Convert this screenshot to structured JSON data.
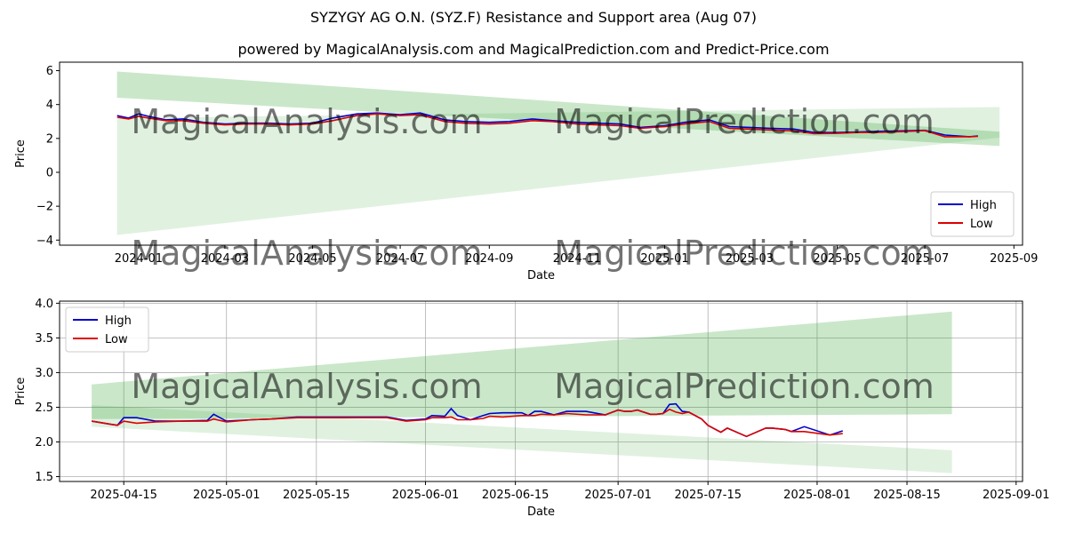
{
  "title": "SYZYGY AG O.N. (SYZ.F) Resistance and Support area (Aug 07)",
  "subtitle": "powered by MagicalAnalysis.com and MagicalPrediction.com and Predict-Price.com",
  "watermarks": [
    "MagicalAnalysis.com",
    "MagicalPrediction.com"
  ],
  "colors": {
    "high": "#0000cc",
    "low": "#dd0000",
    "band": "#2ca02c",
    "grid": "#b0b0b0"
  },
  "chart_data": [
    {
      "type": "line",
      "xlabel": "Date",
      "ylabel": "Price",
      "x_ticks": [
        "2024-01",
        "2024-03",
        "2024-05",
        "2024-07",
        "2024-09",
        "2024-11",
        "2025-01",
        "2025-03",
        "2025-05",
        "2025-07",
        "2025-09"
      ],
      "y_ticks": [
        "−4",
        "−2",
        "0",
        "2",
        "4",
        "6"
      ],
      "xlim": [
        "2023-11-07",
        "2025-09-07"
      ],
      "ylim": [
        -4.3,
        6.5
      ],
      "grid": false,
      "legend": "bottom-right",
      "bands": [
        {
          "x": [
            "2023-12-17",
            "2025-08-22"
          ],
          "upper": [
            5.95,
            2.4
          ],
          "lower": [
            4.4,
            1.55
          ]
        },
        {
          "x": [
            "2023-12-17",
            "2025-08-22"
          ],
          "upper": [
            3.2,
            3.85
          ],
          "lower": [
            -3.7,
            2.05
          ]
        }
      ],
      "series": [
        {
          "name": "High",
          "x": [
            "2023-12-17",
            "2023-12-25",
            "2024-01-01",
            "2024-01-08",
            "2024-01-20",
            "2024-02-01",
            "2024-02-15",
            "2024-03-01",
            "2024-03-15",
            "2024-04-01",
            "2024-04-15",
            "2024-05-01",
            "2024-05-15",
            "2024-06-01",
            "2024-06-15",
            "2024-07-01",
            "2024-07-15",
            "2024-08-01",
            "2024-08-15",
            "2024-09-01",
            "2024-09-15",
            "2024-10-01",
            "2024-10-15",
            "2024-11-01",
            "2024-11-15",
            "2024-12-01",
            "2024-12-15",
            "2025-01-01",
            "2025-01-15",
            "2025-02-01",
            "2025-02-15",
            "2025-03-01",
            "2025-03-15",
            "2025-04-01",
            "2025-04-15",
            "2025-05-01",
            "2025-05-15",
            "2025-06-01",
            "2025-06-15",
            "2025-07-01",
            "2025-07-15",
            "2025-08-01",
            "2025-08-07"
          ],
          "values": [
            3.35,
            3.2,
            3.45,
            3.3,
            3.1,
            3.15,
            2.95,
            2.85,
            2.9,
            2.9,
            2.85,
            2.9,
            3.2,
            3.45,
            3.5,
            3.4,
            3.5,
            3.1,
            3.0,
            2.95,
            3.0,
            3.15,
            3.05,
            2.95,
            2.9,
            2.85,
            2.65,
            2.75,
            2.95,
            3.1,
            2.7,
            2.65,
            2.6,
            2.55,
            2.35,
            2.35,
            2.38,
            2.42,
            2.45,
            2.48,
            2.2,
            2.1,
            2.15
          ]
        },
        {
          "name": "Low",
          "x": [
            "2023-12-17",
            "2023-12-25",
            "2024-01-01",
            "2024-01-08",
            "2024-01-20",
            "2024-02-01",
            "2024-02-15",
            "2024-03-01",
            "2024-03-15",
            "2024-04-01",
            "2024-04-15",
            "2024-05-01",
            "2024-05-15",
            "2024-06-01",
            "2024-06-15",
            "2024-07-01",
            "2024-07-15",
            "2024-08-01",
            "2024-08-15",
            "2024-09-01",
            "2024-09-15",
            "2024-10-01",
            "2024-10-15",
            "2024-11-01",
            "2024-11-15",
            "2024-12-01",
            "2024-12-15",
            "2025-01-01",
            "2025-01-15",
            "2025-02-01",
            "2025-02-15",
            "2025-03-01",
            "2025-03-15",
            "2025-04-01",
            "2025-04-15",
            "2025-05-01",
            "2025-05-15",
            "2025-06-01",
            "2025-06-15",
            "2025-07-01",
            "2025-07-15",
            "2025-08-01",
            "2025-08-07"
          ],
          "values": [
            3.25,
            3.15,
            3.3,
            3.2,
            3.05,
            3.05,
            2.9,
            2.8,
            2.85,
            2.85,
            2.8,
            2.85,
            3.05,
            3.35,
            3.45,
            3.35,
            3.4,
            3.0,
            2.9,
            2.85,
            2.9,
            3.05,
            3.0,
            2.85,
            2.8,
            2.75,
            2.6,
            2.7,
            2.85,
            3.0,
            2.6,
            2.55,
            2.5,
            2.45,
            2.28,
            2.3,
            2.35,
            2.36,
            2.4,
            2.46,
            2.1,
            2.1,
            2.12
          ]
        }
      ]
    },
    {
      "type": "line",
      "xlabel": "Date",
      "ylabel": "Price",
      "x_ticks": [
        "2025-04-15",
        "2025-05-01",
        "2025-05-15",
        "2025-06-01",
        "2025-06-15",
        "2025-07-01",
        "2025-07-15",
        "2025-08-01",
        "2025-08-15",
        "2025-09-01"
      ],
      "y_ticks": [
        "1.5",
        "2.0",
        "2.5",
        "3.0",
        "3.5",
        "4.0"
      ],
      "xlim": [
        "2025-04-05",
        "2025-09-02"
      ],
      "ylim": [
        1.43,
        4.03
      ],
      "grid": true,
      "legend": "top-left",
      "bands": [
        {
          "x": [
            "2025-04-10",
            "2025-08-22"
          ],
          "upper": [
            2.83,
            3.88
          ],
          "lower": [
            2.33,
            2.4
          ]
        },
        {
          "x": [
            "2025-04-10",
            "2025-08-22"
          ],
          "upper": [
            2.53,
            1.88
          ],
          "lower": [
            2.22,
            1.55
          ]
        }
      ],
      "series": [
        {
          "name": "High",
          "x": [
            "2025-04-10",
            "2025-04-12",
            "2025-04-14",
            "2025-04-15",
            "2025-04-17",
            "2025-04-20",
            "2025-04-24",
            "2025-04-28",
            "2025-04-29",
            "2025-05-01",
            "2025-05-05",
            "2025-05-08",
            "2025-05-12",
            "2025-05-26",
            "2025-05-29",
            "2025-06-01",
            "2025-06-02",
            "2025-06-04",
            "2025-06-05",
            "2025-06-06",
            "2025-06-08",
            "2025-06-10",
            "2025-06-11",
            "2025-06-13",
            "2025-06-16",
            "2025-06-17",
            "2025-06-18",
            "2025-06-19",
            "2025-06-21",
            "2025-06-23",
            "2025-06-26",
            "2025-06-29",
            "2025-07-01",
            "2025-07-02",
            "2025-07-03",
            "2025-07-04",
            "2025-07-06",
            "2025-07-07",
            "2025-07-08",
            "2025-07-09",
            "2025-07-10",
            "2025-07-11",
            "2025-07-12",
            "2025-07-14",
            "2025-07-15",
            "2025-07-17",
            "2025-07-18",
            "2025-07-21",
            "2025-07-24",
            "2025-07-25",
            "2025-07-27",
            "2025-07-28",
            "2025-07-30",
            "2025-08-03",
            "2025-08-05"
          ],
          "values": [
            2.3,
            2.27,
            2.24,
            2.35,
            2.35,
            2.3,
            2.3,
            2.31,
            2.4,
            2.3,
            2.32,
            2.33,
            2.36,
            2.36,
            2.31,
            2.33,
            2.38,
            2.37,
            2.48,
            2.38,
            2.32,
            2.38,
            2.41,
            2.42,
            2.42,
            2.38,
            2.44,
            2.44,
            2.39,
            2.44,
            2.44,
            2.39,
            2.46,
            2.44,
            2.44,
            2.46,
            2.4,
            2.4,
            2.41,
            2.54,
            2.55,
            2.44,
            2.43,
            2.33,
            2.24,
            2.14,
            2.2,
            2.08,
            2.2,
            2.2,
            2.18,
            2.15,
            2.22,
            2.1,
            2.16
          ]
        },
        {
          "name": "Low",
          "x": [
            "2025-04-10",
            "2025-04-12",
            "2025-04-14",
            "2025-04-15",
            "2025-04-17",
            "2025-04-20",
            "2025-04-24",
            "2025-04-28",
            "2025-04-29",
            "2025-05-01",
            "2025-05-05",
            "2025-05-08",
            "2025-05-12",
            "2025-05-26",
            "2025-05-29",
            "2025-06-01",
            "2025-06-02",
            "2025-06-04",
            "2025-06-05",
            "2025-06-06",
            "2025-06-08",
            "2025-06-10",
            "2025-06-11",
            "2025-06-13",
            "2025-06-16",
            "2025-06-17",
            "2025-06-18",
            "2025-06-19",
            "2025-06-21",
            "2025-06-23",
            "2025-06-26",
            "2025-06-29",
            "2025-07-01",
            "2025-07-02",
            "2025-07-03",
            "2025-07-04",
            "2025-07-06",
            "2025-07-07",
            "2025-07-08",
            "2025-07-09",
            "2025-07-10",
            "2025-07-11",
            "2025-07-12",
            "2025-07-14",
            "2025-07-15",
            "2025-07-17",
            "2025-07-18",
            "2025-07-21",
            "2025-07-24",
            "2025-07-25",
            "2025-07-27",
            "2025-07-28",
            "2025-07-30",
            "2025-08-03",
            "2025-08-05"
          ],
          "values": [
            2.3,
            2.27,
            2.24,
            2.3,
            2.27,
            2.29,
            2.3,
            2.3,
            2.33,
            2.29,
            2.32,
            2.33,
            2.35,
            2.35,
            2.3,
            2.32,
            2.35,
            2.35,
            2.36,
            2.32,
            2.32,
            2.34,
            2.37,
            2.36,
            2.38,
            2.38,
            2.38,
            2.4,
            2.39,
            2.41,
            2.39,
            2.39,
            2.46,
            2.44,
            2.44,
            2.46,
            2.4,
            2.4,
            2.41,
            2.47,
            2.43,
            2.41,
            2.43,
            2.33,
            2.24,
            2.14,
            2.2,
            2.08,
            2.2,
            2.2,
            2.18,
            2.15,
            2.15,
            2.1,
            2.12
          ]
        }
      ]
    }
  ]
}
